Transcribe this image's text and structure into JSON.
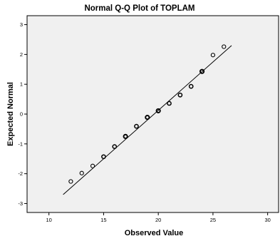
{
  "chart_data": {
    "type": "scatter",
    "title": "Normal Q-Q Plot of TOPLAM",
    "xlabel": "Observed Value",
    "ylabel": "Expected Normal",
    "xlim": [
      8,
      31
    ],
    "ylim": [
      -3.3,
      3.3
    ],
    "x_ticks": [
      10,
      15,
      20,
      25,
      30
    ],
    "x_tick_labels": [
      "10",
      "15",
      "20",
      "25",
      "30"
    ],
    "y_ticks": [
      -3,
      -2,
      -1,
      0,
      1,
      2,
      3
    ],
    "y_tick_labels": [
      "-3",
      "-2",
      "-1",
      "0",
      "1",
      "2",
      "3"
    ],
    "grid": false,
    "plot_background": "#f0f0f0",
    "point_color": "#000000",
    "line_color": "#000000",
    "points": [
      {
        "x": 12,
        "y": -2.26,
        "weight": 1
      },
      {
        "x": 13,
        "y": -1.98,
        "weight": 1
      },
      {
        "x": 14,
        "y": -1.74,
        "weight": 1
      },
      {
        "x": 15,
        "y": -1.43,
        "weight": 2
      },
      {
        "x": 16,
        "y": -1.09,
        "weight": 2
      },
      {
        "x": 17,
        "y": -0.75,
        "weight": 3
      },
      {
        "x": 18,
        "y": -0.41,
        "weight": 2
      },
      {
        "x": 19,
        "y": -0.11,
        "weight": 3
      },
      {
        "x": 20,
        "y": 0.11,
        "weight": 3
      },
      {
        "x": 21,
        "y": 0.36,
        "weight": 2
      },
      {
        "x": 22,
        "y": 0.64,
        "weight": 2
      },
      {
        "x": 23,
        "y": 0.93,
        "weight": 2
      },
      {
        "x": 24,
        "y": 1.43,
        "weight": 3
      },
      {
        "x": 25,
        "y": 1.98,
        "weight": 1
      },
      {
        "x": 26,
        "y": 2.26,
        "weight": 1
      }
    ],
    "reference_line": {
      "x1": 11.3,
      "y1": -2.7,
      "x2": 26.7,
      "y2": 2.3
    }
  }
}
